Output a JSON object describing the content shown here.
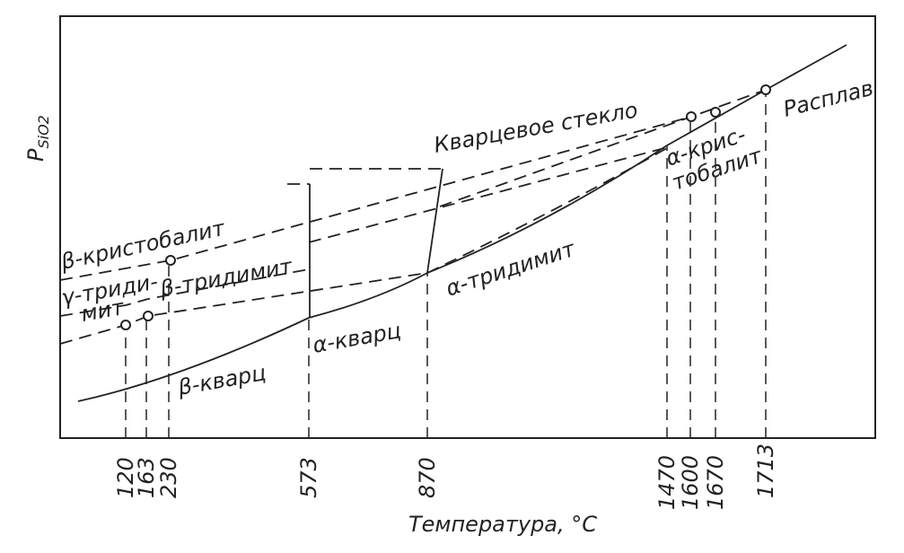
{
  "axes": {
    "y_label": {
      "main": "P",
      "sub": "SiO2"
    },
    "x_label": "Температура, °C",
    "x_ticks": [
      "120",
      "163",
      "230",
      "573",
      "870",
      "1470",
      "1600",
      "1670",
      "1713"
    ]
  },
  "phases": {
    "beta_cristobalite": "β-кристобалит",
    "gamma_tridymite": [
      "γ-триди-",
      "мит"
    ],
    "beta_tridymite": "β-тридимит",
    "beta_quartz": "β-кварц",
    "alpha_quartz": "α-кварц",
    "alpha_tridymite": "α-тридимит",
    "quartz_glass": "Кварцевое стекло",
    "alpha_cristobalite": [
      "α-крис-",
      "тобалит"
    ],
    "melt": "Расплав"
  }
}
